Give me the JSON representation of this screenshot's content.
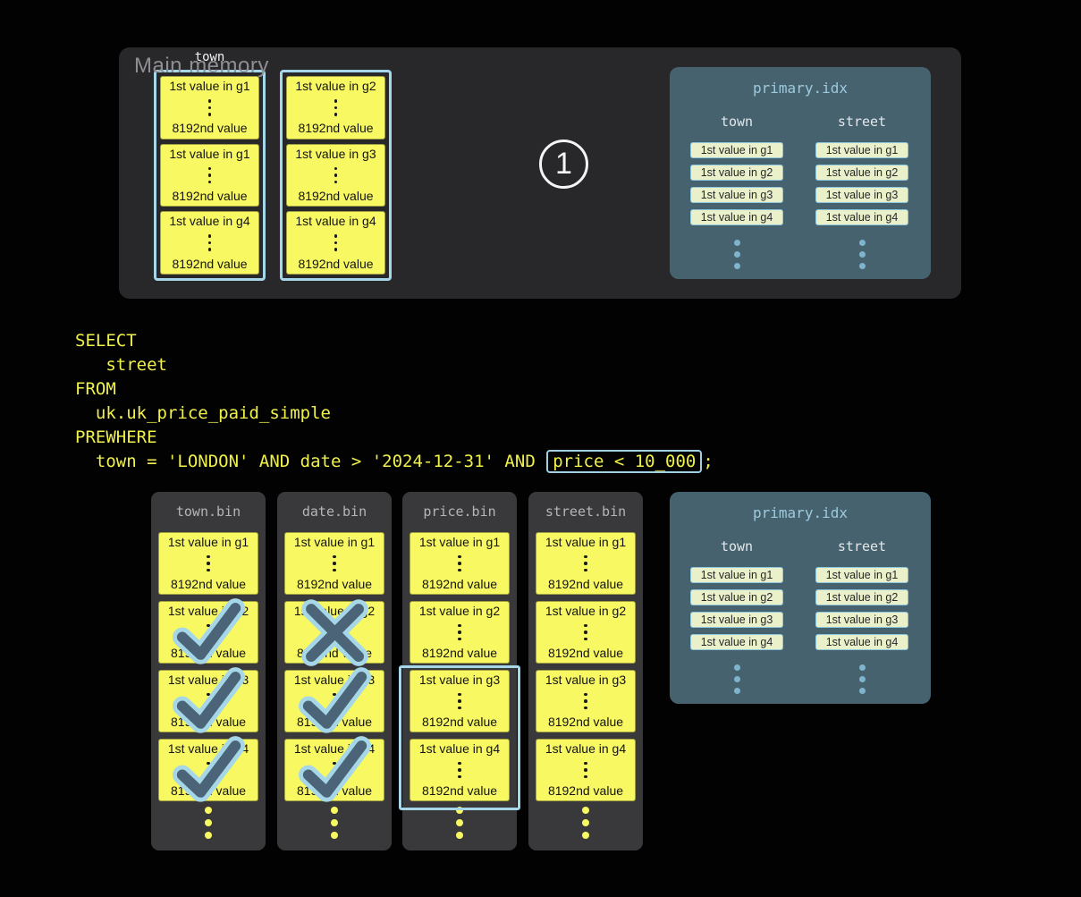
{
  "colors": {
    "background": "#020203",
    "memory_panel": "#28282b",
    "bin_panel": "#39393b",
    "index_panel": "#47626f",
    "granule_yellow": "#f8f862",
    "highlight_blue": "#a5d7e9",
    "sql_yellow": "#f1f14b",
    "index_title_blue": "#9dcade",
    "pill_green": "#eaf0ca",
    "mark_dark": "#4b6478"
  },
  "main_memory": {
    "title": "Main memory",
    "column_label": "town",
    "step_badge": "1",
    "stacks": [
      {
        "blocks": [
          {
            "top": "1st value in g1",
            "bottom": "8192nd value"
          },
          {
            "top": "1st value in g1",
            "bottom": "8192nd value"
          },
          {
            "top": "1st value in g4",
            "bottom": "8192nd value"
          }
        ]
      },
      {
        "blocks": [
          {
            "top": "1st value in g2",
            "bottom": "8192nd value"
          },
          {
            "top": "1st value in g3",
            "bottom": "8192nd value"
          },
          {
            "top": "1st value in g4",
            "bottom": "8192nd value"
          }
        ]
      }
    ]
  },
  "primary_index_top": {
    "title": "primary.idx",
    "columns": [
      {
        "header": "town",
        "entries": [
          "1st value in g1",
          "1st value in g2",
          "1st value in g3",
          "1st value in g4"
        ]
      },
      {
        "header": "street",
        "entries": [
          "1st value in g1",
          "1st value in g2",
          "1st value in g3",
          "1st value in g4"
        ]
      }
    ]
  },
  "primary_index_bottom": {
    "title": "primary.idx",
    "columns": [
      {
        "header": "town",
        "entries": [
          "1st value in g1",
          "1st value in g2",
          "1st value in g3",
          "1st value in g4"
        ]
      },
      {
        "header": "street",
        "entries": [
          "1st value in g1",
          "1st value in g2",
          "1st value in g3",
          "1st value in g4"
        ]
      }
    ]
  },
  "sql": {
    "lines": [
      "SELECT",
      "   street",
      "FROM",
      "  uk.uk_price_paid_simple",
      "PREWHERE"
    ],
    "last_line_prefix": "  town = 'LONDON' AND date > '2024-12-31' AND ",
    "highlighted_predicate": "price < 10_000",
    "last_line_suffix": ";"
  },
  "bins": [
    {
      "name": "town.bin",
      "blocks": [
        {
          "top": "1st value in g1",
          "bottom": "8192nd value",
          "mark": "none"
        },
        {
          "top": "1st value in g2",
          "bottom": "8192nd value",
          "mark": "check"
        },
        {
          "top": "1st value in g3",
          "bottom": "8192nd value",
          "mark": "check"
        },
        {
          "top": "1st value in g4",
          "bottom": "8192nd value",
          "mark": "check"
        }
      ]
    },
    {
      "name": "date.bin",
      "blocks": [
        {
          "top": "1st value in g1",
          "bottom": "8192nd value",
          "mark": "none"
        },
        {
          "top": "1st value in g2",
          "bottom": "8192nd value",
          "mark": "cross"
        },
        {
          "top": "1st value in g3",
          "bottom": "8192nd value",
          "mark": "check"
        },
        {
          "top": "1st value in g4",
          "bottom": "8192nd value",
          "mark": "check"
        }
      ]
    },
    {
      "name": "price.bin",
      "selected_granules_outline": [
        "g3",
        "g4"
      ],
      "blocks": [
        {
          "top": "1st value in g1",
          "bottom": "8192nd value",
          "mark": "none"
        },
        {
          "top": "1st value in g2",
          "bottom": "8192nd value",
          "mark": "none"
        },
        {
          "top": "1st value in g3",
          "bottom": "8192nd value",
          "mark": "none"
        },
        {
          "top": "1st value in g4",
          "bottom": "8192nd value",
          "mark": "none"
        }
      ]
    },
    {
      "name": "street.bin",
      "blocks": [
        {
          "top": "1st value in g1",
          "bottom": "8192nd value",
          "mark": "none"
        },
        {
          "top": "1st value in g2",
          "bottom": "8192nd value",
          "mark": "none"
        },
        {
          "top": "1st value in g3",
          "bottom": "8192nd value",
          "mark": "none"
        },
        {
          "top": "1st value in g4",
          "bottom": "8192nd value",
          "mark": "none"
        }
      ]
    }
  ],
  "icons": {
    "check": "matched-granule-check",
    "cross": "pruned-granule-x",
    "step_one": "circled-1"
  }
}
